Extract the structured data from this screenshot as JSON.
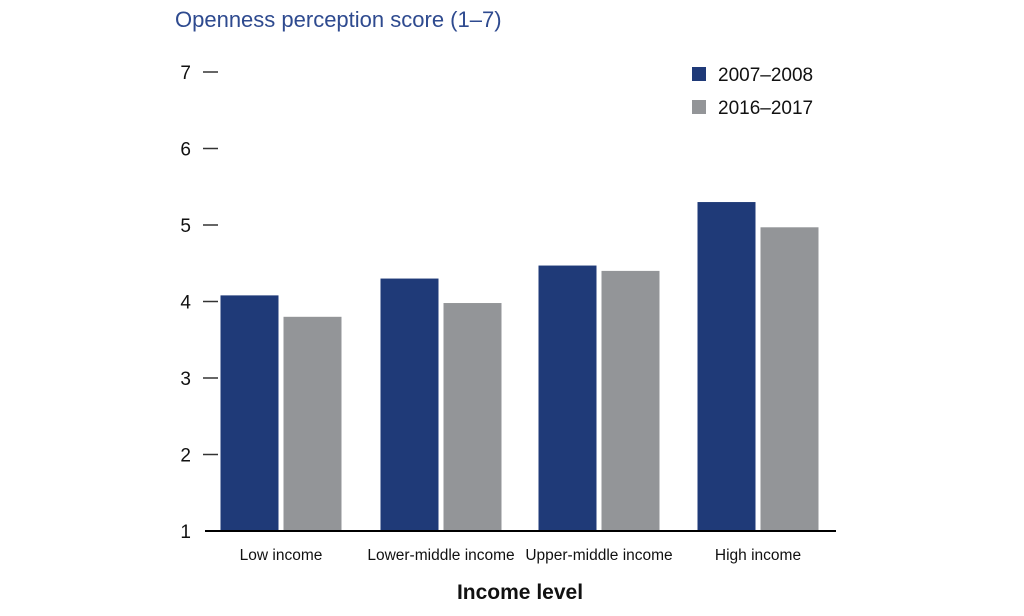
{
  "chart_data": {
    "type": "bar",
    "title": "Openness perception score (1–7)",
    "xlabel": "Income level",
    "ylabel": "",
    "ylim": [
      1,
      7
    ],
    "yticks": [
      1,
      2,
      3,
      4,
      5,
      6,
      7
    ],
    "categories": [
      "Low income",
      "Lower-middle income",
      "Upper-middle income",
      "High income"
    ],
    "series": [
      {
        "name": "2007–2008",
        "color": "#1f3a78",
        "values": [
          4.08,
          4.3,
          4.47,
          5.3
        ]
      },
      {
        "name": "2016–2017",
        "color": "#939598",
        "values": [
          3.8,
          3.98,
          4.4,
          4.97
        ]
      }
    ],
    "legend_position": "top-right",
    "grid": false
  },
  "colors": {
    "title": "#2e4a8f",
    "axis": "#000000",
    "text": "#111111"
  }
}
